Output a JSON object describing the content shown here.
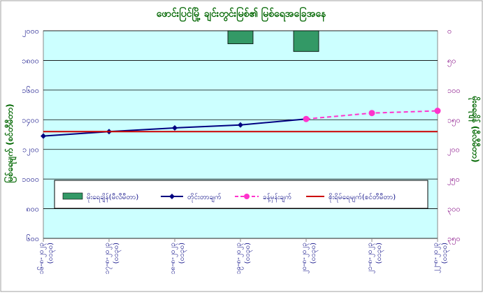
{
  "chart_data": {
    "type": "bar+line",
    "title": "ဖောင်းပြင်မြို့ ချင်းတွင်းမြစ်၏ မြစ်ရေအခြေအနေ",
    "ylabel_left": "မြစ်ရေမျက် (စင်တီမီတာ)",
    "ylabel_right": "မိုးရေချိန် (မီလီမီတာ)",
    "categories": [
      [
        "၁၆-၈-၂၀၂၃",
        "(၀၁၃၀)"
      ],
      [
        "၁၇-၈-၂၀၂၃",
        "(၀၁၃၀)"
      ],
      [
        "၁၈-၈-၂၀၂၃",
        "(၀၁၃၀)"
      ],
      [
        "၁၉-၈-၂၀၂၃",
        "(၀၁၃၀)"
      ],
      [
        "၂၀-၈-၂၀၂၃",
        "(၀၁၃၀)"
      ],
      [
        "၂၁-၈-၂၀၂၃",
        "(၀၁၃၀)"
      ],
      [
        "၂၂-၈-၂၀၂၃",
        "(၀၁၃၀)"
      ]
    ],
    "left_axis": {
      "min": 600,
      "max": 2000,
      "step": 200,
      "tick_labels": [
        "၆၀၀",
        "၈၀၀",
        "၁၀၀၀",
        "၁၂၀၀",
        "၁၄၀၀",
        "၁၆၀၀",
        "၁၈၀၀",
        "၂၀၀၀"
      ]
    },
    "right_axis": {
      "min": 0,
      "max": 350,
      "step": 50,
      "reversed": true,
      "tick_labels": [
        "၀",
        "၅၀",
        "၁၀၀",
        "၁၅၀",
        "၂၀၀",
        "၂၅၀",
        "၃၀၀",
        "၃၅၀"
      ]
    },
    "series": [
      {
        "name": "မိုးရေချိန်(မီလီမီတာ)",
        "type": "bar",
        "axis": "right",
        "color": "#339966",
        "values": [
          null,
          null,
          null,
          22,
          35,
          null,
          null
        ]
      },
      {
        "name": "တိုင်းတာချက်",
        "type": "line",
        "axis": "left",
        "color": "#000080",
        "values": [
          1290,
          1320,
          1345,
          1365,
          1405,
          null,
          null
        ]
      },
      {
        "name": "ခန့်မှန်းချက်",
        "type": "dashed-line",
        "axis": "left",
        "color": "#ff33cc",
        "values": [
          null,
          null,
          null,
          null,
          1405,
          1445,
          1460
        ]
      },
      {
        "name": "စိုးရိမ်ရေမျက်(စင်တီမီတာ)",
        "type": "line",
        "axis": "left",
        "color": "#cc0000",
        "values": [
          1320,
          1320,
          1320,
          1320,
          1320,
          1320,
          1320
        ]
      }
    ],
    "legend_position": "bottom-center",
    "grid": "horizontal",
    "colors": {
      "plot_bg": "#ccffff",
      "title": "#006600",
      "left_axis_text": "#000080",
      "right_axis_text": "#800080",
      "frame": "#808080"
    }
  }
}
